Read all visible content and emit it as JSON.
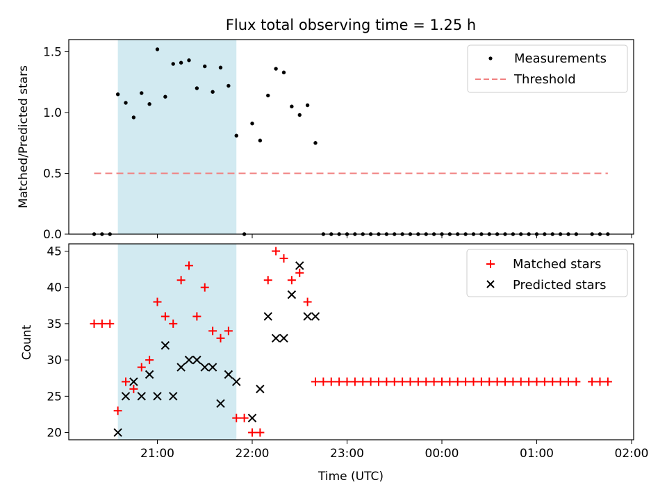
{
  "chart_data": [
    {
      "type": "scatter",
      "title": "Flux total observing time = 1.25 h",
      "xlabel": "",
      "ylabel": "Matched/Predicted stars",
      "ylim": [
        0,
        1.6
      ],
      "yticks": [
        "0.0",
        "0.5",
        "1.0",
        "1.5"
      ],
      "x_tick_labels": [],
      "legend_position": "top-right",
      "legend": [
        {
          "label": "Measurements",
          "marker": "dot",
          "color": "#000000"
        },
        {
          "label": "Threshold",
          "marker": "dashed-line",
          "color": "#f08080"
        }
      ],
      "shaded_interval": {
        "start": "20:35",
        "end": "21:50",
        "color": "#add8e6"
      },
      "threshold": {
        "value": 0.5,
        "start": "20:20",
        "end": "01:45",
        "color": "#f08080"
      },
      "series": [
        {
          "marker": "dot",
          "color": "#000000",
          "x": [
            "20:20",
            "20:25",
            "20:30",
            "20:35",
            "20:40",
            "20:45",
            "20:50",
            "20:55",
            "21:00",
            "21:05",
            "21:10",
            "21:15",
            "21:20",
            "21:25",
            "21:30",
            "21:35",
            "21:40",
            "21:45",
            "21:50",
            "21:55",
            "22:00",
            "22:05",
            "22:10",
            "22:15",
            "22:20",
            "22:25",
            "22:30",
            "22:35",
            "22:40",
            "22:45",
            "22:50",
            "22:55",
            "23:00",
            "23:05",
            "23:10",
            "23:15",
            "23:20",
            "23:25",
            "23:30",
            "23:35",
            "23:40",
            "23:45",
            "23:50",
            "23:55",
            "00:00",
            "00:05",
            "00:10",
            "00:15",
            "00:20",
            "00:25",
            "00:30",
            "00:35",
            "00:40",
            "00:45",
            "00:50",
            "00:55",
            "01:00",
            "01:05",
            "01:10",
            "01:15",
            "01:20",
            "01:25",
            "01:35",
            "01:40",
            "01:45"
          ],
          "y": [
            0,
            0,
            0,
            1.15,
            1.08,
            0.96,
            1.16,
            1.07,
            1.52,
            1.13,
            1.4,
            1.41,
            1.43,
            1.2,
            1.38,
            1.17,
            1.37,
            1.22,
            0.81,
            0,
            0.91,
            0.77,
            1.14,
            1.36,
            1.33,
            1.05,
            0.98,
            1.06,
            0.75,
            0,
            0,
            0,
            0,
            0,
            0,
            0,
            0,
            0,
            0,
            0,
            0,
            0,
            0,
            0,
            0,
            0,
            0,
            0,
            0,
            0,
            0,
            0,
            0,
            0,
            0,
            0,
            0,
            0,
            0,
            0,
            0,
            0,
            0,
            0,
            0
          ]
        }
      ]
    },
    {
      "type": "scatter",
      "title": "",
      "xlabel": "Time (UTC)",
      "ylabel": "Count",
      "ylim": [
        19,
        46
      ],
      "yticks": [
        "20",
        "25",
        "30",
        "35",
        "40",
        "45"
      ],
      "x_tick_labels": [
        "21:00",
        "22:00",
        "23:00",
        "00:00",
        "01:00",
        "02:00"
      ],
      "legend_position": "top-right",
      "legend": [
        {
          "label": "Matched stars",
          "marker": "plus",
          "color": "#ff0000"
        },
        {
          "label": "Predicted stars",
          "marker": "x",
          "color": "#000000"
        }
      ],
      "shaded_interval": {
        "start": "20:35",
        "end": "21:50",
        "color": "#add8e6"
      },
      "series": [
        {
          "name": "Matched stars",
          "marker": "plus",
          "color": "#ff0000",
          "x": [
            "20:20",
            "20:25",
            "20:30",
            "20:35",
            "20:40",
            "20:45",
            "20:50",
            "20:55",
            "21:00",
            "21:05",
            "21:10",
            "21:15",
            "21:20",
            "21:25",
            "21:30",
            "21:35",
            "21:40",
            "21:45",
            "21:50",
            "21:55",
            "22:00",
            "22:05",
            "22:10",
            "22:15",
            "22:20",
            "22:25",
            "22:30",
            "22:35",
            "22:40",
            "22:45",
            "22:50",
            "22:55",
            "23:00",
            "23:05",
            "23:10",
            "23:15",
            "23:20",
            "23:25",
            "23:30",
            "23:35",
            "23:40",
            "23:45",
            "23:50",
            "23:55",
            "00:00",
            "00:05",
            "00:10",
            "00:15",
            "00:20",
            "00:25",
            "00:30",
            "00:35",
            "00:40",
            "00:45",
            "00:50",
            "00:55",
            "01:00",
            "01:05",
            "01:10",
            "01:15",
            "01:20",
            "01:25",
            "01:35",
            "01:40",
            "01:45"
          ],
          "y": [
            35,
            35,
            35,
            23,
            27,
            26,
            29,
            30,
            38,
            36,
            35,
            41,
            43,
            36,
            40,
            34,
            33,
            34,
            22,
            22,
            20,
            20,
            41,
            45,
            44,
            41,
            42,
            38,
            27,
            27,
            27,
            27,
            27,
            27,
            27,
            27,
            27,
            27,
            27,
            27,
            27,
            27,
            27,
            27,
            27,
            27,
            27,
            27,
            27,
            27,
            27,
            27,
            27,
            27,
            27,
            27,
            27,
            27,
            27,
            27,
            27,
            27,
            27,
            27,
            27
          ]
        },
        {
          "name": "Predicted stars",
          "marker": "x",
          "color": "#000000",
          "x": [
            "20:35",
            "20:40",
            "20:45",
            "20:50",
            "20:55",
            "21:00",
            "21:05",
            "21:10",
            "21:15",
            "21:20",
            "21:25",
            "21:30",
            "21:35",
            "21:40",
            "21:45",
            "21:50",
            "22:00",
            "22:05",
            "22:10",
            "22:15",
            "22:20",
            "22:25",
            "22:30",
            "22:35",
            "22:40"
          ],
          "y": [
            20,
            25,
            27,
            25,
            28,
            25,
            32,
            25,
            29,
            30,
            30,
            29,
            29,
            24,
            28,
            27,
            22,
            26,
            36,
            33,
            33,
            39,
            43,
            36,
            36
          ]
        }
      ]
    }
  ]
}
